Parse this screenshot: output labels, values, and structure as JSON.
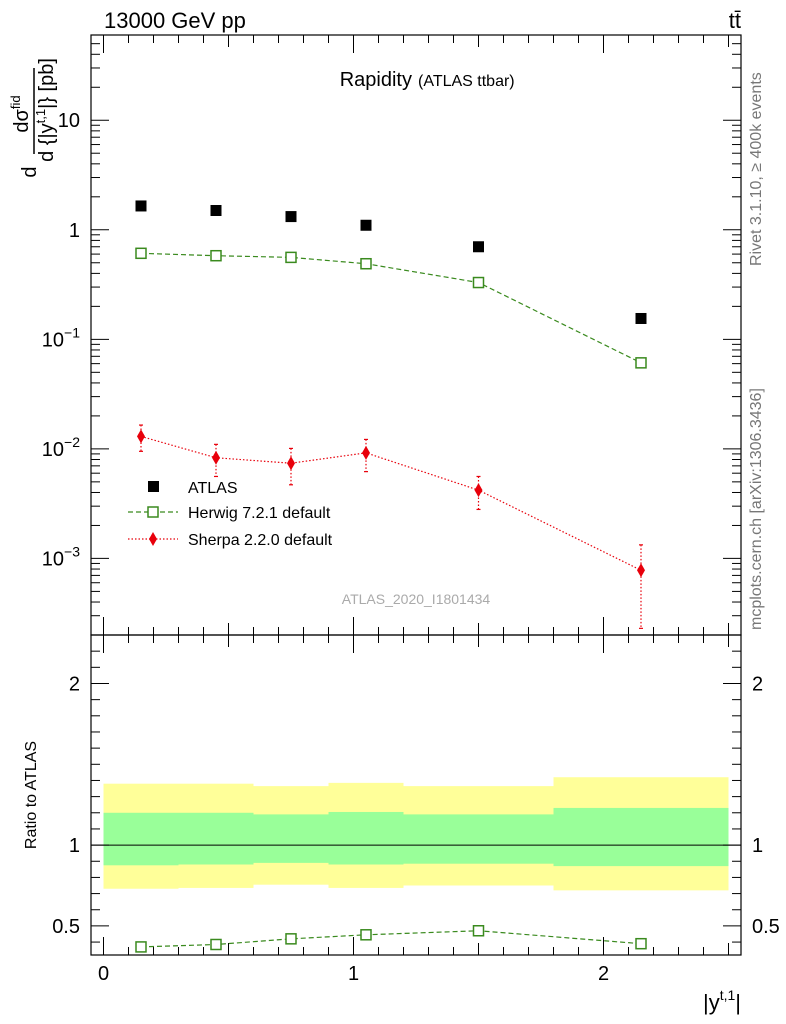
{
  "header": {
    "energy_label": "13000 GeV pp",
    "process_label": "tt̄"
  },
  "side_labels": {
    "rivet": "Rivet 3.1.10, ≥ 400k events",
    "mcplots": "mcplots.cern.ch [arXiv:1306.3436]"
  },
  "chart_data": [
    {
      "type": "scatter",
      "title": "Rapidity",
      "subtitle": "(ATLAS ttbar)",
      "analysis_label": "ATLAS_2020_I1801434",
      "ylabel_parts": {
        "d": "d",
        "numerator": "dσ",
        "numerator_sup": "fid",
        "denominator": "d {|y",
        "denominator_sup": "t,1",
        "denominator_end": "|} [pb]"
      },
      "yscale": "log",
      "ylim": [
        0.0002,
        60
      ],
      "xlim": [
        -0.05,
        2.55
      ],
      "y_ticks": [
        {
          "value": 10,
          "mantissa": "10",
          "exp": ""
        },
        {
          "value": 1,
          "mantissa": "1",
          "exp": ""
        },
        {
          "value": 0.1,
          "mantissa": "10",
          "exp": "−1"
        },
        {
          "value": 0.01,
          "mantissa": "10",
          "exp": "−2"
        },
        {
          "value": 0.001,
          "mantissa": "10",
          "exp": "−3"
        }
      ],
      "legend_position": "lower-left",
      "series": [
        {
          "name": "ATLAS",
          "color": "#000000",
          "marker": "square-filled",
          "x": [
            0.15,
            0.45,
            0.75,
            1.05,
            1.5,
            2.15
          ],
          "y": [
            1.65,
            1.5,
            1.32,
            1.1,
            0.7,
            0.155
          ]
        },
        {
          "name": "Herwig 7.2.1 default",
          "color": "#3a8a1e",
          "marker": "square-open",
          "line": "dashed",
          "x": [
            0.15,
            0.45,
            0.75,
            1.05,
            1.5,
            2.15
          ],
          "y": [
            0.61,
            0.58,
            0.56,
            0.49,
            0.33,
            0.061
          ]
        },
        {
          "name": "Sherpa 2.2.0 default",
          "color": "#e8000b",
          "marker": "diamond-filled",
          "line": "dotted",
          "x": [
            0.15,
            0.45,
            0.75,
            1.05,
            1.5,
            2.15
          ],
          "y": [
            0.013,
            0.0083,
            0.0074,
            0.0092,
            0.0042,
            0.00078
          ],
          "y_err_low": [
            0.0035,
            0.0027,
            0.0027,
            0.003,
            0.0014,
            0.00055
          ],
          "y_err_high": [
            0.0035,
            0.0027,
            0.0027,
            0.003,
            0.0014,
            0.00055
          ]
        }
      ]
    },
    {
      "type": "area",
      "ylabel": "Ratio to ATLAS",
      "xlabel_parts": {
        "base": "|y",
        "sup": "t,1",
        "end": "|"
      },
      "ylim": [
        0.32,
        2.3
      ],
      "xlim": [
        -0.05,
        2.55
      ],
      "x_ticks": [
        {
          "value": 0,
          "label": "0"
        },
        {
          "value": 1,
          "label": "1"
        },
        {
          "value": 2,
          "label": "2"
        }
      ],
      "y_ticks": [
        {
          "value": 0.5,
          "label": "0.5"
        },
        {
          "value": 1,
          "label": "1"
        },
        {
          "value": 2,
          "label": "2"
        }
      ],
      "bands": {
        "bin_edges": [
          0,
          0.3,
          0.6,
          0.9,
          1.2,
          1.8,
          2.5
        ],
        "outer_low": [
          0.73,
          0.735,
          0.755,
          0.735,
          0.75,
          0.72
        ],
        "outer_high": [
          1.38,
          1.38,
          1.365,
          1.385,
          1.365,
          1.42
        ],
        "inner_low": [
          0.875,
          0.88,
          0.89,
          0.88,
          0.885,
          0.87
        ],
        "inner_high": [
          1.2,
          1.2,
          1.19,
          1.205,
          1.19,
          1.23
        ],
        "outer_color": "#ffff99",
        "inner_color": "#99ff99"
      },
      "reference_line": 1,
      "series": [
        {
          "name": "Herwig 7.2.1 default",
          "color": "#3a8a1e",
          "marker": "square-open",
          "line": "dashed",
          "x": [
            0.15,
            0.45,
            0.75,
            1.05,
            1.5,
            2.15
          ],
          "y": [
            0.37,
            0.385,
            0.42,
            0.445,
            0.47,
            0.39
          ],
          "y_err_low": [
            0,
            0,
            0,
            0,
            0,
            0.02
          ],
          "y_err_high": [
            0,
            0,
            0,
            0,
            0,
            0.02
          ]
        }
      ]
    }
  ]
}
